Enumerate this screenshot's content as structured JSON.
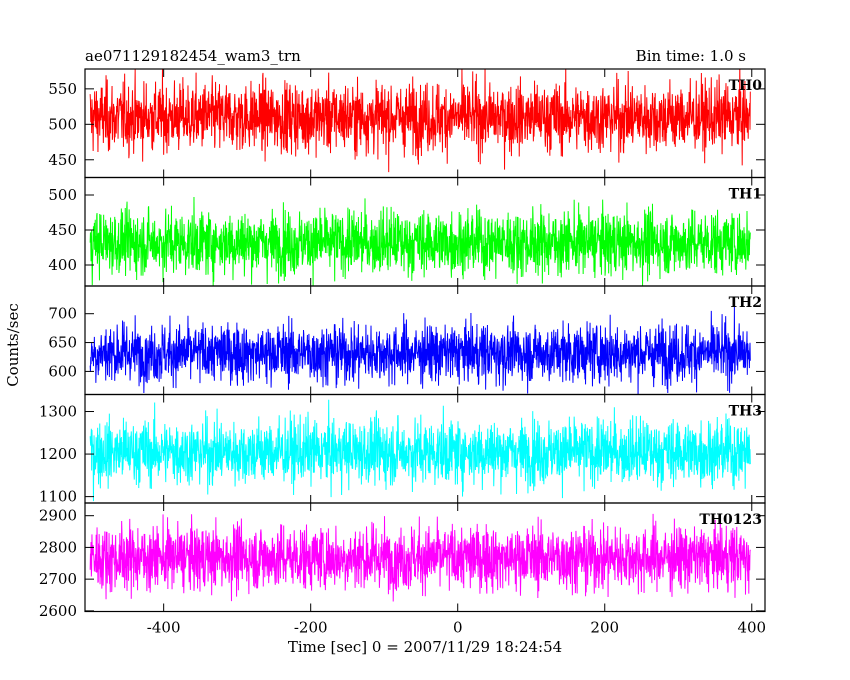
{
  "chart_data": {
    "type": "line",
    "title_left": "ae071129182454_wam3_trn",
    "title_right": "Bin time: 1.0 s",
    "xlabel": "Time [sec] 0 = 2007/11/29 18:24:54",
    "ylabel": "Counts/sec",
    "xlim": [
      -507,
      418
    ],
    "x_range": [
      -500,
      398
    ],
    "x_ticks": [
      -400,
      -200,
      0,
      200,
      400
    ],
    "grid": false,
    "panels": [
      {
        "name": "TH0",
        "color": "#ff0000",
        "ylim": [
          425,
          578
        ],
        "yticks": [
          450,
          500,
          550
        ],
        "mean": 510,
        "amplitude": 48
      },
      {
        "name": "TH1",
        "color": "#00ff00",
        "ylim": [
          370,
          525
        ],
        "yticks": [
          400,
          450,
          500
        ],
        "mean": 432,
        "amplitude": 45
      },
      {
        "name": "TH2",
        "color": "#0000ff",
        "ylim": [
          560,
          748
        ],
        "yticks": [
          600,
          650,
          700
        ],
        "mean": 632,
        "amplitude": 50
      },
      {
        "name": "TH3",
        "color": "#00ffff",
        "ylim": [
          1085,
          1340
        ],
        "yticks": [
          1100,
          1200,
          1300
        ],
        "mean": 1205,
        "amplitude": 75
      },
      {
        "name": "TH0123",
        "color": "#ff00ff",
        "ylim": [
          2598,
          2940
        ],
        "yticks": [
          2600,
          2700,
          2800,
          2900
        ],
        "mean": 2768,
        "amplitude": 100
      }
    ]
  }
}
